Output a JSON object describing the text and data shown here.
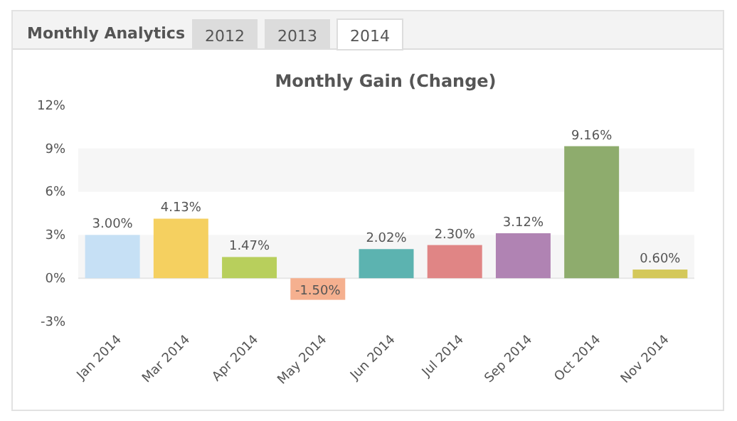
{
  "chart_data": {
    "type": "bar",
    "title": "Monthly Gain (Change)",
    "annotations": [
      "Monthly Analytics",
      "2012",
      "2013",
      "2014"
    ],
    "categories": [
      "Jan 2014",
      "Mar 2014",
      "Apr 2014",
      "May 2014",
      "Jun 2014",
      "Jul 2014",
      "Sep 2014",
      "Oct 2014",
      "Nov 2014"
    ],
    "values": [
      3.0,
      4.13,
      1.47,
      -1.5,
      2.02,
      2.3,
      3.12,
      9.16,
      0.6
    ],
    "colors": [
      "#c6e0f5",
      "#f5d060",
      "#b8cf5c",
      "#f5b08f",
      "#5cb3b0",
      "#e08585",
      "#b083b3",
      "#8eac6d",
      "#d4c85a"
    ],
    "value_labels": [
      "3.00%",
      "4.13%",
      "1.47%",
      "-1.50%",
      "2.02%",
      "2.30%",
      "3.12%",
      "9.16%",
      "0.60%"
    ],
    "ylim": [
      -3,
      12
    ],
    "yticks": [
      {
        "value": -3,
        "label": "-3%"
      },
      {
        "value": 0,
        "label": "0%"
      },
      {
        "value": 3,
        "label": "3%"
      },
      {
        "value": 6,
        "label": "6%"
      },
      {
        "value": 9,
        "label": "9%"
      },
      {
        "value": 12,
        "label": "12%"
      }
    ],
    "bands": [
      {
        "axis": "y",
        "from": 0,
        "to": 3,
        "color": "#f6f6f6"
      },
      {
        "axis": "y",
        "from": 6,
        "to": 9,
        "color": "#f6f6f6"
      }
    ],
    "grid": "y"
  }
}
